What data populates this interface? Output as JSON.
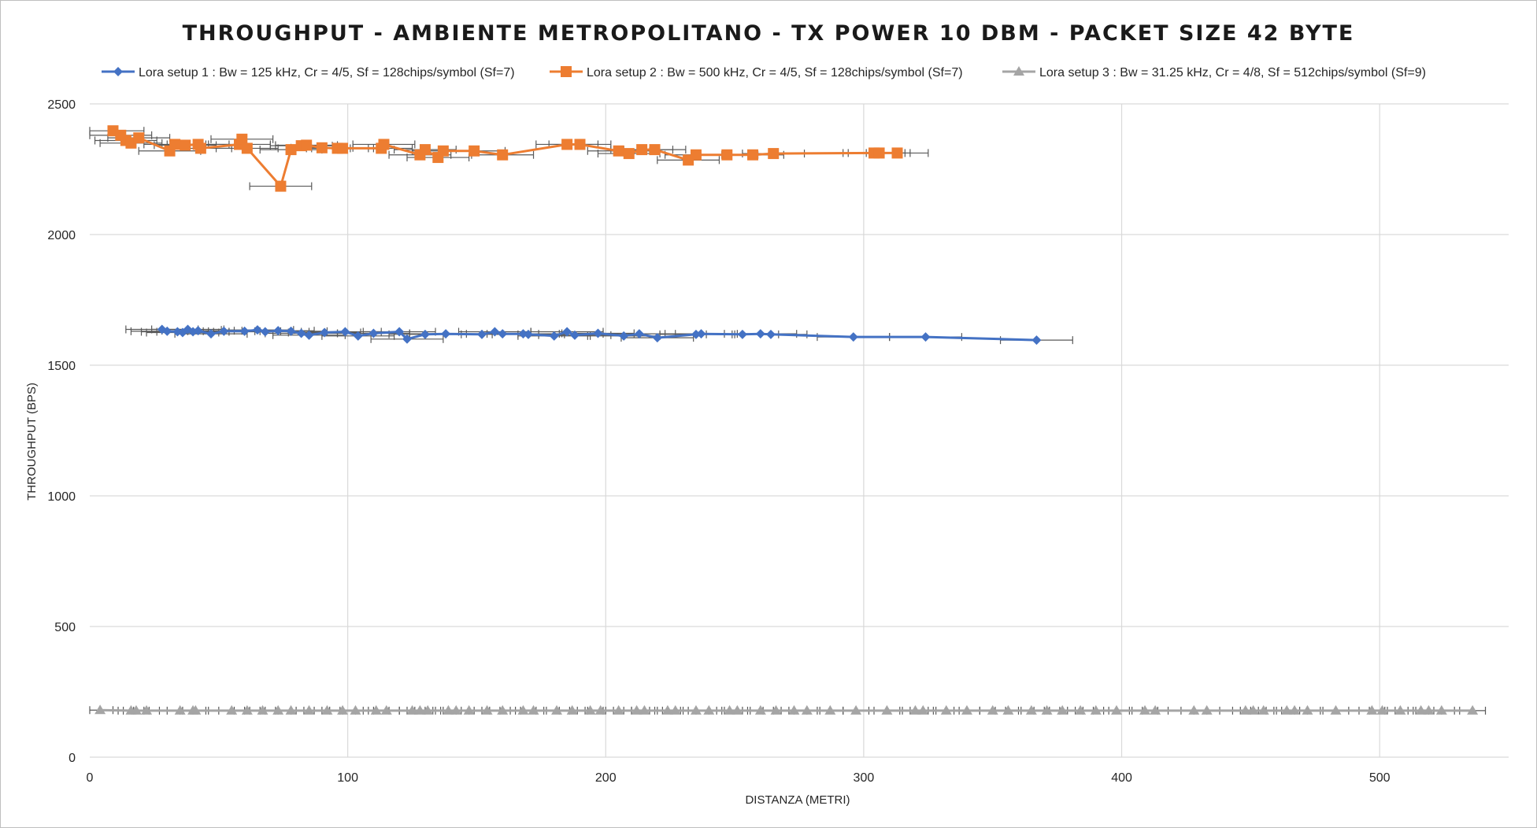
{
  "chart_data": {
    "type": "line",
    "title": "THROUGHPUT  - AMBIENTE  METROPOLITANO  - TX POWER 10 DBM - PACKET  SIZE 42 BYTE",
    "xlabel": "DISTANZA (METRI)",
    "ylabel": "THROUGHPUT (BPS)",
    "xlim": [
      0,
      550
    ],
    "ylim": [
      0,
      2500
    ],
    "x_ticks": [
      "0",
      "100",
      "200",
      "300",
      "400",
      "500"
    ],
    "y_ticks": [
      "0",
      "500",
      "1000",
      "1500",
      "2000",
      "2500"
    ],
    "grid": true,
    "legend_position": "top",
    "error_bars": "horizontal",
    "series": [
      {
        "name": "Lora setup 1 : Bw = 125 kHz, Cr = 4/5, Sf = 128chips/symbol (Sf=7)",
        "color": "#4472c4",
        "marker": "diamond",
        "points": [
          [
            28,
            1637
          ],
          [
            30,
            1630
          ],
          [
            34,
            1628
          ],
          [
            36,
            1625
          ],
          [
            38,
            1637
          ],
          [
            40,
            1628
          ],
          [
            42,
            1632
          ],
          [
            47,
            1620
          ],
          [
            52,
            1630
          ],
          [
            60,
            1630
          ],
          [
            65,
            1635
          ],
          [
            68,
            1628
          ],
          [
            73,
            1632
          ],
          [
            78,
            1630
          ],
          [
            82,
            1622
          ],
          [
            85,
            1615
          ],
          [
            91,
            1625
          ],
          [
            99,
            1628
          ],
          [
            104,
            1612
          ],
          [
            110,
            1622
          ],
          [
            120,
            1628
          ],
          [
            123,
            1600
          ],
          [
            130,
            1618
          ],
          [
            138,
            1620
          ],
          [
            152,
            1618
          ],
          [
            157,
            1628
          ],
          [
            160,
            1620
          ],
          [
            168,
            1620
          ],
          [
            170,
            1618
          ],
          [
            180,
            1612
          ],
          [
            185,
            1628
          ],
          [
            188,
            1615
          ],
          [
            197,
            1622
          ],
          [
            207,
            1612
          ],
          [
            213,
            1620
          ],
          [
            220,
            1605
          ],
          [
            235,
            1618
          ],
          [
            237,
            1620
          ],
          [
            253,
            1618
          ],
          [
            260,
            1620
          ],
          [
            264,
            1618
          ],
          [
            296,
            1608
          ],
          [
            324,
            1608
          ],
          [
            367,
            1596
          ]
        ],
        "xerr": 14
      },
      {
        "name": "Lora setup 2 : Bw = 500 kHz, Cr = 4/5, Sf = 128chips/symbol (Sf=7)",
        "color": "#ed7d31",
        "marker": "square",
        "points": [
          [
            9,
            2397
          ],
          [
            12,
            2380
          ],
          [
            14,
            2360
          ],
          [
            16,
            2350
          ],
          [
            19,
            2370
          ],
          [
            31,
            2320
          ],
          [
            33,
            2345
          ],
          [
            37,
            2342
          ],
          [
            42,
            2345
          ],
          [
            43,
            2330
          ],
          [
            58,
            2345
          ],
          [
            59,
            2365
          ],
          [
            61,
            2330
          ],
          [
            74,
            2185
          ],
          [
            78,
            2325
          ],
          [
            82,
            2340
          ],
          [
            84,
            2342
          ],
          [
            90,
            2332
          ],
          [
            96,
            2330
          ],
          [
            98,
            2330
          ],
          [
            113,
            2330
          ],
          [
            114,
            2345
          ],
          [
            128,
            2305
          ],
          [
            130,
            2325
          ],
          [
            135,
            2295
          ],
          [
            137,
            2320
          ],
          [
            149,
            2320
          ],
          [
            160,
            2305
          ],
          [
            185,
            2345
          ],
          [
            190,
            2345
          ],
          [
            205,
            2320
          ],
          [
            209,
            2310
          ],
          [
            214,
            2325
          ],
          [
            219,
            2325
          ],
          [
            232,
            2285
          ],
          [
            235,
            2305
          ],
          [
            247,
            2305
          ],
          [
            257,
            2305
          ],
          [
            265,
            2310
          ],
          [
            304,
            2312
          ],
          [
            306,
            2312
          ],
          [
            313,
            2312
          ]
        ],
        "xerr": 12
      },
      {
        "name": "Lora setup 3 : Bw = 31.25 kHz, Cr = 4/8, Sf = 512chips/symbol (Sf=9)",
        "color": "#a5a5a5",
        "marker": "triangle",
        "points": [
          [
            4,
            180
          ],
          [
            16,
            178
          ],
          [
            18,
            178
          ],
          [
            22,
            178
          ],
          [
            35,
            178
          ],
          [
            40,
            178
          ],
          [
            41,
            178
          ],
          [
            55,
            178
          ],
          [
            61,
            178
          ],
          [
            67,
            178
          ],
          [
            73,
            178
          ],
          [
            78,
            178
          ],
          [
            85,
            178
          ],
          [
            92,
            178
          ],
          [
            98,
            178
          ],
          [
            103,
            178
          ],
          [
            111,
            178
          ],
          [
            115,
            178
          ],
          [
            125,
            178
          ],
          [
            128,
            178
          ],
          [
            131,
            178
          ],
          [
            139,
            178
          ],
          [
            142,
            178
          ],
          [
            147,
            178
          ],
          [
            154,
            178
          ],
          [
            160,
            178
          ],
          [
            168,
            178
          ],
          [
            172,
            178
          ],
          [
            181,
            178
          ],
          [
            187,
            178
          ],
          [
            194,
            178
          ],
          [
            198,
            178
          ],
          [
            205,
            178
          ],
          [
            212,
            178
          ],
          [
            215,
            178
          ],
          [
            224,
            178
          ],
          [
            227,
            178
          ],
          [
            235,
            178
          ],
          [
            240,
            178
          ],
          [
            248,
            178
          ],
          [
            251,
            178
          ],
          [
            260,
            178
          ],
          [
            266,
            178
          ],
          [
            273,
            178
          ],
          [
            278,
            178
          ],
          [
            287,
            178
          ],
          [
            297,
            178
          ],
          [
            309,
            178
          ],
          [
            320,
            178
          ],
          [
            323,
            178
          ],
          [
            332,
            178
          ],
          [
            340,
            178
          ],
          [
            350,
            178
          ],
          [
            356,
            178
          ],
          [
            365,
            178
          ],
          [
            371,
            178
          ],
          [
            377,
            178
          ],
          [
            384,
            178
          ],
          [
            390,
            178
          ],
          [
            398,
            178
          ],
          [
            409,
            178
          ],
          [
            413,
            178
          ],
          [
            428,
            178
          ],
          [
            433,
            178
          ],
          [
            448,
            178
          ],
          [
            451,
            178
          ],
          [
            455,
            178
          ],
          [
            464,
            178
          ],
          [
            467,
            178
          ],
          [
            472,
            178
          ],
          [
            483,
            178
          ],
          [
            497,
            178
          ],
          [
            501,
            178
          ],
          [
            508,
            178
          ],
          [
            516,
            178
          ],
          [
            519,
            178
          ],
          [
            524,
            178
          ],
          [
            536,
            178
          ]
        ],
        "xerr": 5
      }
    ]
  }
}
